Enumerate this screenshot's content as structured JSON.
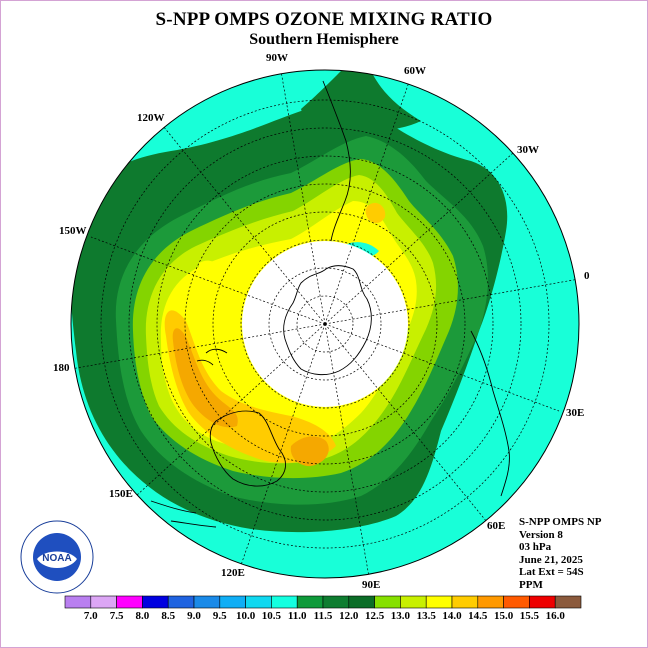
{
  "title": "S-NPP OMPS OZONE MIXING RATIO",
  "subtitle": "Southern Hemisphere",
  "longitude_labels": [
    "90W",
    "60W",
    "30W",
    "0",
    "30E",
    "60E",
    "90E",
    "120E",
    "150E",
    "180",
    "150W",
    "120W"
  ],
  "info": {
    "line1": "S-NPP OMPS NP",
    "line2": "Version 8",
    "line3": "03 hPa",
    "line4": "June 21, 2025",
    "line5": "Lat Ext = 54S",
    "line6": "PPM"
  },
  "logo": {
    "text": "NOAA",
    "ring_text": "NATIONAL OCEANIC AND ATMOSPHERIC ADMINISTRATION · U.S. DEPARTMENT OF COMMERCE"
  },
  "colorbar": {
    "labels": [
      "7.0",
      "7.5",
      "8.0",
      "8.5",
      "9.0",
      "9.5",
      "10.0",
      "10.5",
      "11.0",
      "11.5",
      "12.0",
      "12.5",
      "13.0",
      "13.5",
      "14.0",
      "14.5",
      "15.0",
      "15.5",
      "16.0"
    ],
    "colors": [
      "#b97ff0",
      "#dca6f5",
      "#ff00ff",
      "#0000e0",
      "#1f63e0",
      "#1a8ae8",
      "#10aef5",
      "#10d8f0",
      "#14ffe0",
      "#0f9a3a",
      "#0e7d30",
      "#0b6d27",
      "#86e000",
      "#c8f000",
      "#ffff00",
      "#ffcc00",
      "#ff9900",
      "#ff5a00",
      "#ee0000",
      "#8b5a3c"
    ]
  },
  "colors": {
    "cyan": "#18ffd8",
    "green_dark": "#0e7a2e",
    "green_mid": "#1c9a3a",
    "green_light": "#84d400",
    "lime": "#c8f000",
    "yellow": "#ffff00",
    "gold": "#ffcc00",
    "orange": "#f5a800"
  }
}
